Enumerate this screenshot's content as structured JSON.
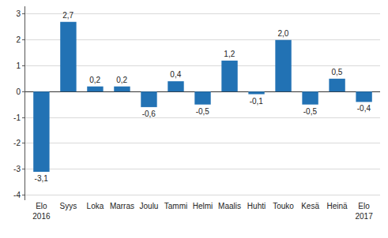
{
  "chart_data": {
    "type": "bar",
    "categories": [
      "Elo\n2016",
      "Syys",
      "Loka",
      "Marras",
      "Joulu",
      "Tammi",
      "Helmi",
      "Maalis",
      "Huhti",
      "Touko",
      "Kesä",
      "Heinä",
      "Elo\n2017"
    ],
    "values": [
      -3.1,
      2.7,
      0.2,
      0.2,
      -0.6,
      0.4,
      -0.5,
      1.2,
      -0.1,
      2.0,
      -0.5,
      0.5,
      -0.4
    ],
    "value_labels": [
      "-3,1",
      "2,7",
      "0,2",
      "0,2",
      "-0,6",
      "0,4",
      "-0,5",
      "1,2",
      "-0,1",
      "2,0",
      "-0,5",
      "0,5",
      "-0,4"
    ],
    "color": "#2272b4",
    "ylim": [
      -4.2,
      3.3
    ],
    "yticks": [
      -4,
      -3,
      -2,
      -1,
      0,
      1,
      2,
      3
    ],
    "grid": true,
    "data_labels": true
  }
}
